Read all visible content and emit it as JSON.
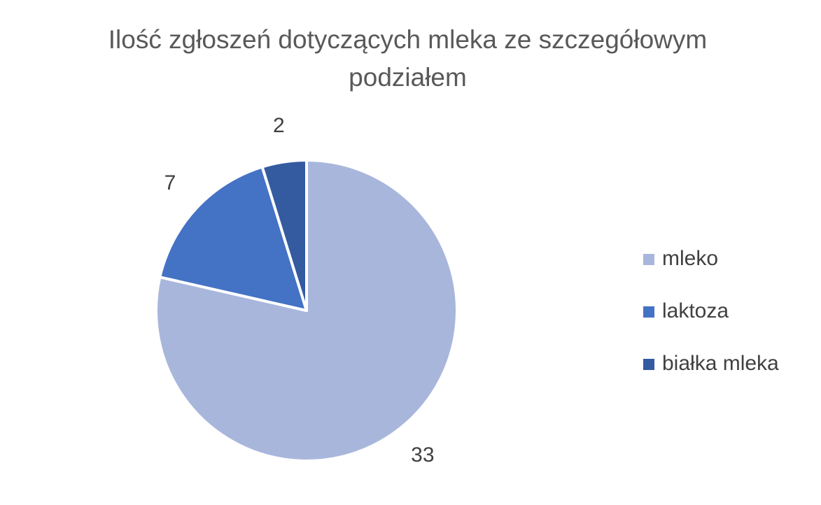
{
  "chart_data": {
    "type": "pie",
    "title": "Ilość zgłoszeń dotyczących mleka ze szczegółowym podziałem",
    "categories": [
      "mleko",
      "laktoza",
      "białka mleka"
    ],
    "values": [
      33,
      7,
      2
    ],
    "colors": [
      "#a9b6dc",
      "#4472c4",
      "#345ba0"
    ],
    "legend": "right"
  }
}
